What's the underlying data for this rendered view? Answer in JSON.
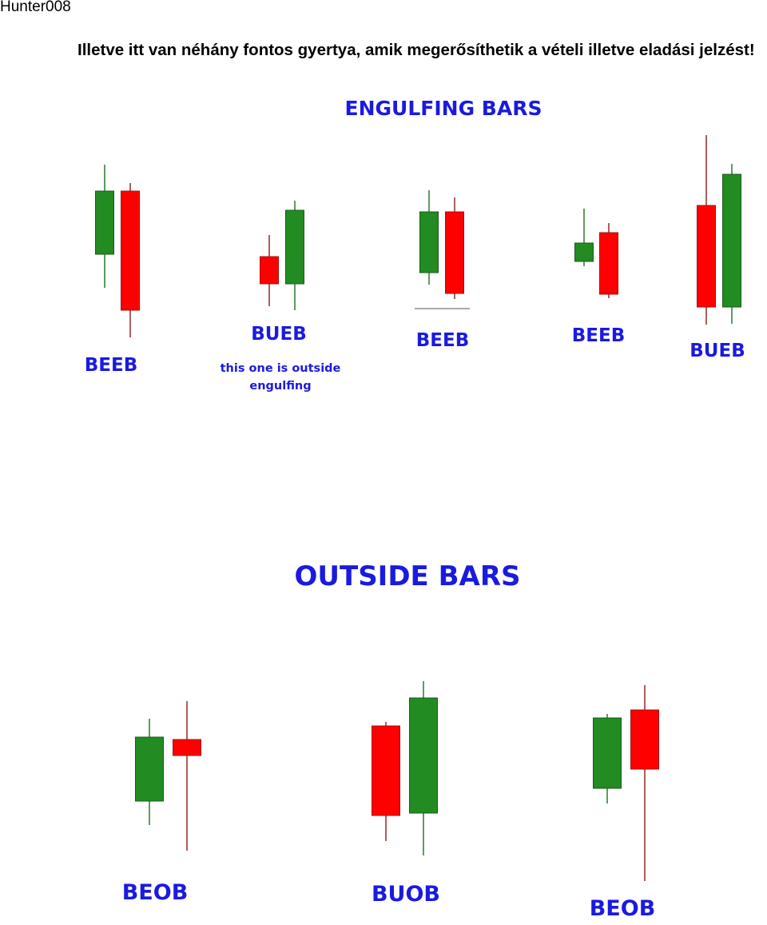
{
  "author": "Hunter008",
  "intro": "Illetve itt van néhány fontos gyertya, amik megerősíthetik a vételi illetve eladási jelzést!",
  "colors": {
    "bull": "#228B22",
    "bear": "#FF0000",
    "label": "#1a1ae0"
  },
  "sections": [
    {
      "title": "ENGULFING BARS",
      "patterns": [
        {
          "label": "BEEB",
          "note": ""
        },
        {
          "label": "BUEB",
          "note": "this one is outside engulfing"
        },
        {
          "label": "BEEB",
          "note": ""
        },
        {
          "label": "BEEB",
          "note": ""
        },
        {
          "label": "BUEB",
          "note": ""
        }
      ]
    },
    {
      "title": "OUTSIDE BARS",
      "patterns": [
        {
          "label": "BEOB",
          "note": ""
        },
        {
          "label": "BUOB",
          "note": ""
        },
        {
          "label": "BEOB",
          "note": ""
        }
      ]
    }
  ]
}
